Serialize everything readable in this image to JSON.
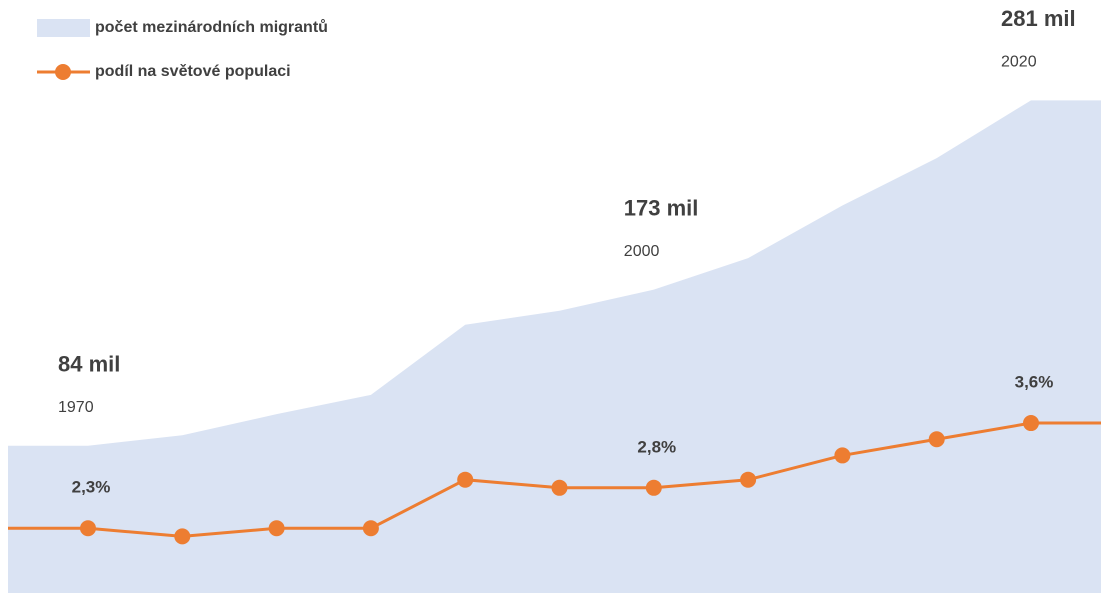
{
  "chart_data": {
    "type": "area-line",
    "categories": [
      "1970",
      null,
      null,
      null,
      null,
      null,
      "2000",
      null,
      null,
      null,
      "2020"
    ],
    "series": [
      {
        "name": "počet mezinárodních migrantů",
        "type": "area",
        "color": "#dae3f3",
        "values": [
          84,
          90,
          102,
          113,
          153,
          161,
          173,
          191,
          221,
          248,
          281
        ],
        "value_labels": [
          "84 mil",
          null,
          null,
          null,
          null,
          null,
          "173 mil",
          null,
          null,
          null,
          "281 mil"
        ]
      },
      {
        "name": "podíl na světové populaci",
        "type": "line",
        "axis": "y2",
        "color": "#ed7d31",
        "values": [
          2.3,
          2.2,
          2.3,
          2.3,
          2.9,
          2.8,
          2.8,
          2.9,
          3.2,
          3.4,
          3.6
        ],
        "value_labels": [
          "2,3%",
          null,
          null,
          null,
          null,
          null,
          "2,8%",
          null,
          null,
          null,
          "3,6%"
        ]
      }
    ],
    "ylim": [
      0,
      300
    ],
    "y2lim": [
      1.5,
      8
    ],
    "legend": "top-left"
  }
}
